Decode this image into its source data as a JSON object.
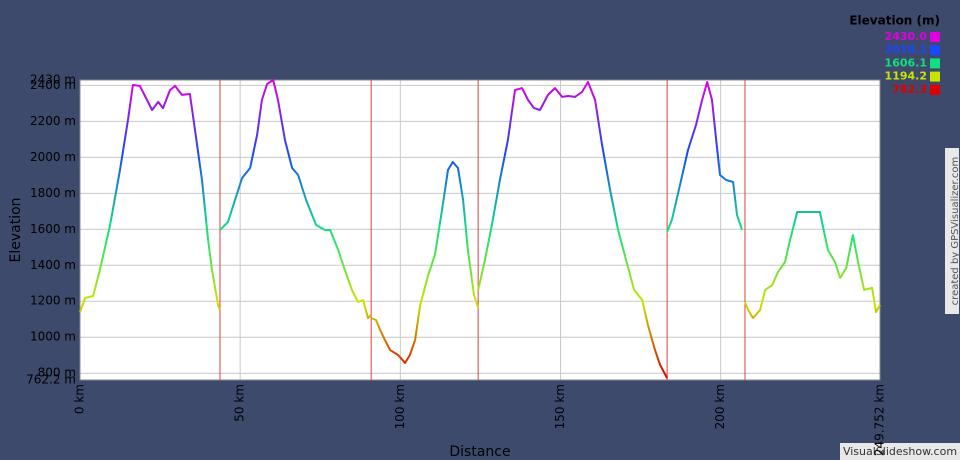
{
  "chart_data": {
    "type": "line",
    "ylabel": "Elevation",
    "xlabel": "Distance",
    "legend_title": "Elevation (m)",
    "legend": [
      {
        "value": 2430,
        "label": "2430.0",
        "color": "#e000e0"
      },
      {
        "value": 2018.1,
        "label": "2018.1",
        "color": "#1848ff"
      },
      {
        "value": 1606.1,
        "label": "1606.1",
        "color": "#10e080"
      },
      {
        "value": 1194.2,
        "label": "1194.2",
        "color": "#c8e400"
      },
      {
        "value": 782.3,
        "label": "782.3",
        "color": "#e00000"
      }
    ],
    "credit": "created by GPSVisualizer.com",
    "watermark": "VisualSlideshow.com",
    "xlim": [
      0,
      249.752
    ],
    "ylim": [
      762.2,
      2430
    ],
    "xticks": [
      {
        "value": 0,
        "label": "0 km"
      },
      {
        "value": 50,
        "label": "50 km"
      },
      {
        "value": 100,
        "label": "100 km"
      },
      {
        "value": 150,
        "label": "150 km"
      },
      {
        "value": 200,
        "label": "200 km"
      },
      {
        "value": 249.752,
        "label": "249.752 km"
      }
    ],
    "yticks": [
      {
        "value": 762.2,
        "label": "762.2 m"
      },
      {
        "value": 800,
        "label": "800 m"
      },
      {
        "value": 1000,
        "label": "1000 m"
      },
      {
        "value": 1200,
        "label": "1200 m"
      },
      {
        "value": 1400,
        "label": "1400 m"
      },
      {
        "value": 1600,
        "label": "1600 m"
      },
      {
        "value": 1800,
        "label": "1800 m"
      },
      {
        "value": 2000,
        "label": "2000 m"
      },
      {
        "value": 2200,
        "label": "2200 m"
      },
      {
        "value": 2400,
        "label": "2400 m"
      },
      {
        "value": 2430,
        "label": "2430 m"
      }
    ],
    "grid": true,
    "breaks": [
      43.7,
      90.9,
      124.3,
      183.3,
      207.6
    ],
    "break_color": "#e04040",
    "x": [
      0,
      1.6,
      4.1,
      6.2,
      9.4,
      12.5,
      15.0,
      16.5,
      18.7,
      20.3,
      22.5,
      24.4,
      25.9,
      28.1,
      29.7,
      31.8,
      34.3,
      35.9,
      38.1,
      40.0,
      41.2,
      43.1,
      43.7,
      null,
      43.7,
      46.2,
      48.4,
      50.6,
      53.1,
      55.3,
      56.8,
      58.4,
      60.3,
      61.8,
      64.0,
      66.2,
      68.1,
      70.6,
      73.7,
      76.5,
      78.1,
      80.6,
      82.7,
      84.9,
      86.8,
      88.4,
      89.9,
      90.9,
      null,
      90.9,
      92.4,
      93.7,
      95.2,
      96.8,
      99.3,
      101.5,
      103.0,
      104.6,
      106.2,
      108.7,
      110.8,
      113.0,
      114.9,
      116.4,
      118.0,
      119.6,
      121.1,
      123.0,
      124.3,
      null,
      124.3,
      126.4,
      128.6,
      131.1,
      133.6,
      135.8,
      138.0,
      139.9,
      141.7,
      143.6,
      146.1,
      148.3,
      150.5,
      152.4,
      154.5,
      156.7,
      158.6,
      160.8,
      163.0,
      165.5,
      168.0,
      170.5,
      173.0,
      175.5,
      177.3,
      179.5,
      181.1,
      183.3,
      null,
      183.3,
      184.8,
      187.3,
      189.8,
      192.3,
      194.2,
      195.8,
      197.3,
      198.6,
      199.8,
      201.7,
      203.9,
      205.1,
      206.7,
      null,
      207.6,
      208.6,
      210.1,
      212.3,
      213.9,
      216.1,
      217.9,
      220.1,
      221.7,
      223.9,
      226.4,
      228.5,
      231.0,
      233.5,
      235.7,
      237.3,
      239.2,
      241.3,
      242.9,
      244.8,
      247.3,
      248.5,
      249.752
    ],
    "series": [
      {
        "name": "Elevation",
        "values": [
          1140,
          1218,
          1229,
          1374,
          1624,
          1930,
          2208,
          2402,
          2397,
          2341,
          2263,
          2308,
          2274,
          2374,
          2397,
          2347,
          2352,
          2152,
          1874,
          1541,
          1374,
          1179,
          1151,
          null,
          1596,
          1641,
          1763,
          1885,
          1941,
          2124,
          2319,
          2408,
          2430,
          2319,
          2096,
          1941,
          1902,
          1763,
          1624,
          1596,
          1596,
          1485,
          1374,
          1263,
          1196,
          1207,
          1107,
          1124,
          null,
          1107,
          1096,
          1040,
          985,
          929,
          901,
          857,
          901,
          985,
          1179,
          1346,
          1457,
          1707,
          1930,
          1974,
          1941,
          1763,
          1485,
          1235,
          1163,
          null,
          1263,
          1429,
          1624,
          1874,
          2096,
          2374,
          2385,
          2319,
          2274,
          2263,
          2347,
          2385,
          2336,
          2341,
          2336,
          2363,
          2419,
          2319,
          2068,
          1819,
          1596,
          1429,
          1263,
          1207,
          1068,
          929,
          846,
          773,
          null,
          1585,
          1652,
          1846,
          2041,
          2180,
          2319,
          2419,
          2319,
          2096,
          1902,
          1874,
          1863,
          1680,
          1596,
          null,
          1196,
          1151,
          1107,
          1151,
          1263,
          1290,
          1363,
          1418,
          1541,
          1696,
          1696,
          1696,
          1696,
          1485,
          1418,
          1329,
          1385,
          1568,
          1418,
          1263,
          1274,
          1140,
          1179
        ]
      }
    ]
  }
}
